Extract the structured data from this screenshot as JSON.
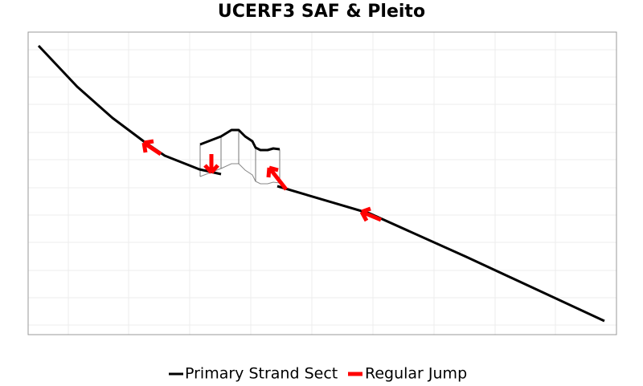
{
  "title": "UCERF3 SAF & Pleito",
  "legend": [
    {
      "name": "Primary Strand Sect",
      "color": "#000000"
    },
    {
      "name": "Regular Jump",
      "color": "#ff0000"
    }
  ]
}
